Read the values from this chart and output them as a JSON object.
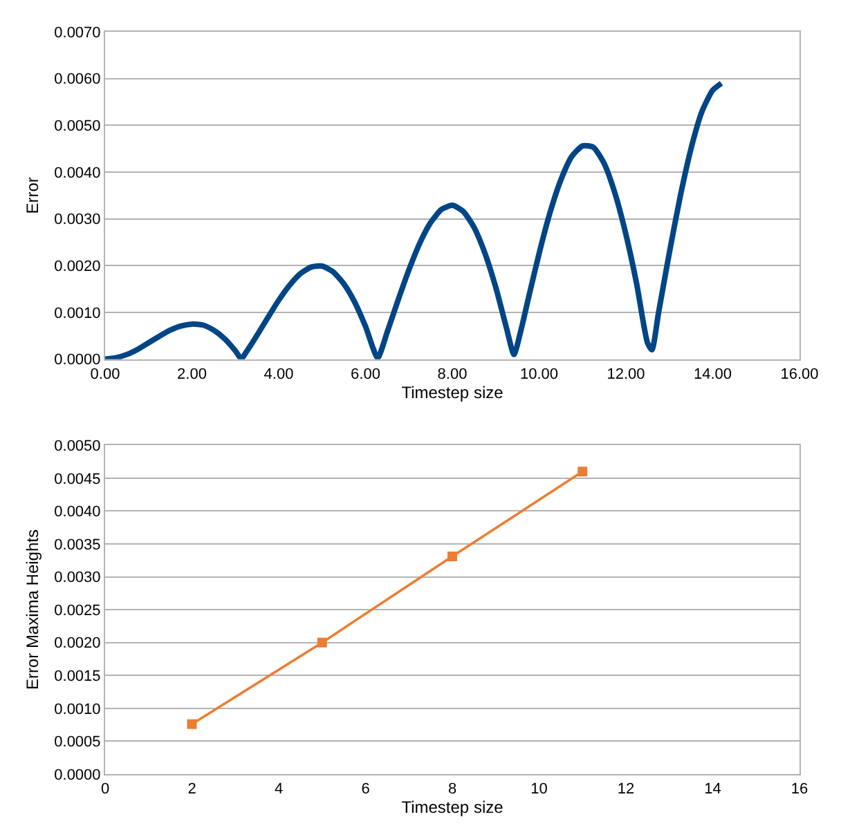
{
  "chart_data": [
    {
      "type": "line",
      "xlabel": "Timestep size",
      "ylabel": "Error",
      "grid": "y",
      "marker": "none",
      "line_style": "solid",
      "xlim": [
        0,
        16
      ],
      "ylim": [
        0,
        0.007
      ],
      "xticks": [
        {
          "value": 0,
          "label": "0.00"
        },
        {
          "value": 2,
          "label": "2.00"
        },
        {
          "value": 4,
          "label": "4.00"
        },
        {
          "value": 6,
          "label": "6.00"
        },
        {
          "value": 8,
          "label": "8.00"
        },
        {
          "value": 10,
          "label": "10.00"
        },
        {
          "value": 12,
          "label": "12.00"
        },
        {
          "value": 14,
          "label": "14.00"
        },
        {
          "value": 16,
          "label": "16.00"
        }
      ],
      "yticks": [
        {
          "value": 0,
          "label": "0.0000"
        },
        {
          "value": 0.001,
          "label": "0.0010"
        },
        {
          "value": 0.002,
          "label": "0.0020"
        },
        {
          "value": 0.003,
          "label": "0.0030"
        },
        {
          "value": 0.004,
          "label": "0.0040"
        },
        {
          "value": 0.005,
          "label": "0.0050"
        },
        {
          "value": 0.006,
          "label": "0.0060"
        },
        {
          "value": 0.007,
          "label": "0.0070"
        }
      ],
      "series": [
        {
          "color": "#004586",
          "x": [
            0,
            0.25,
            0.5,
            0.75,
            1.0,
            1.25,
            1.5,
            1.75,
            2.0,
            2.25,
            2.5,
            2.75,
            3.0,
            3.14,
            3.25,
            3.5,
            3.75,
            4.0,
            4.25,
            4.5,
            4.75,
            5.0,
            5.25,
            5.5,
            5.75,
            6.0,
            6.28,
            6.5,
            6.75,
            7.0,
            7.25,
            7.5,
            7.75,
            8.0,
            8.25,
            8.5,
            8.75,
            9.0,
            9.25,
            9.42,
            9.6,
            9.75,
            10.0,
            10.25,
            10.5,
            10.75,
            11.0,
            11.25,
            11.5,
            11.75,
            12.0,
            12.25,
            12.5,
            12.6,
            12.75,
            13.0,
            13.25,
            13.5,
            13.75,
            14.0,
            14.2
          ],
          "values": [
            0,
            3e-05,
            0.0001,
            0.00021,
            0.00035,
            0.00049,
            0.00062,
            0.00071,
            0.00075,
            0.00073,
            0.00062,
            0.00044,
            0.00018,
            1e-05,
            0.00015,
            0.00051,
            0.00089,
            0.00126,
            0.00158,
            0.00183,
            0.00197,
            0.00199,
            0.00187,
            0.00161,
            0.00122,
            0.0007,
            3e-05,
            0.00058,
            0.00126,
            0.00191,
            0.00248,
            0.00292,
            0.0032,
            0.00329,
            0.00316,
            0.00282,
            0.00227,
            0.00154,
            0.00066,
            0.0001,
            0.00069,
            0.00129,
            0.00226,
            0.00313,
            0.00383,
            0.00433,
            0.00456,
            0.00453,
            0.00418,
            0.00354,
            0.00267,
            0.0016,
            0.00034,
            0.0002,
            0.00098,
            0.00227,
            0.00347,
            0.0045,
            0.00529,
            0.00575,
            0.0059
          ]
        }
      ]
    },
    {
      "type": "line",
      "xlabel": "Timestep size",
      "ylabel": "Error Maxima Heights",
      "grid": "y",
      "marker": "square",
      "line_style": "solid",
      "xlim": [
        0,
        16
      ],
      "ylim": [
        0,
        0.005
      ],
      "xticks": [
        0,
        2,
        4,
        6,
        8,
        10,
        12,
        14,
        16
      ],
      "yticks": [
        {
          "value": 0,
          "label": "0.0000"
        },
        {
          "value": 0.0005,
          "label": "0.0005"
        },
        {
          "value": 0.001,
          "label": "0.0010"
        },
        {
          "value": 0.0015,
          "label": "0.0015"
        },
        {
          "value": 0.002,
          "label": "0.0020"
        },
        {
          "value": 0.0025,
          "label": "0.0025"
        },
        {
          "value": 0.003,
          "label": "0.0030"
        },
        {
          "value": 0.0035,
          "label": "0.0035"
        },
        {
          "value": 0.004,
          "label": "0.0040"
        },
        {
          "value": 0.0045,
          "label": "0.0045"
        },
        {
          "value": 0.005,
          "label": "0.0050"
        }
      ],
      "series": [
        {
          "color": "#ed7d31",
          "x": [
            2,
            5,
            8,
            11
          ],
          "values": [
            0.00076,
            0.002,
            0.00331,
            0.0046
          ]
        }
      ]
    }
  ]
}
